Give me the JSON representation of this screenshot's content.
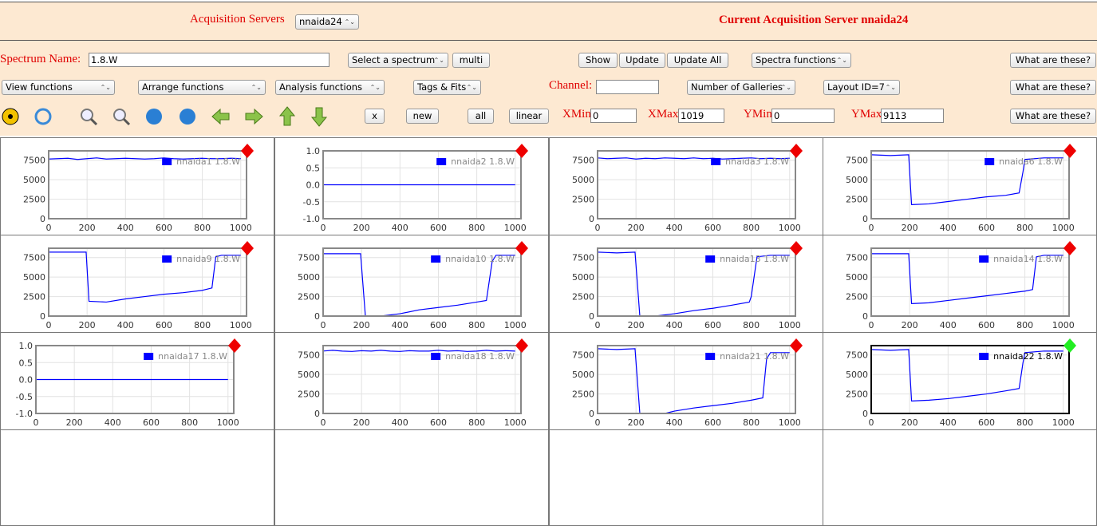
{
  "header": {
    "servers_label": "Acquisition Servers",
    "server": "nnaida24",
    "current": "Current Acquisition Server nnaida24"
  },
  "controls": {
    "spectrum_name_label": "Spectrum Name:",
    "spectrum_name": "1.8.W",
    "select_spectrum": "Select a spectrum",
    "multi": "multi",
    "show": "Show",
    "update": "Update",
    "update_all": "Update All",
    "spectra_functions": "Spectra functions",
    "help": [
      "What are these?",
      "What are these?",
      "What are these?"
    ],
    "view_functions": "View functions",
    "arrange_functions": "Arrange functions",
    "analysis_functions": "Analysis functions",
    "tags_fits": "Tags & Fits",
    "channel_label": "Channel:",
    "galleries": "Number of Galleries",
    "layout": "Layout ID=7",
    "x": "x",
    "new": "new",
    "all": "all",
    "linear": "linear",
    "xmin_label": "XMin",
    "xmin": "0",
    "xmax_label": "XMax",
    "xmax": "1019",
    "ymin_label": "YMin",
    "ymin": "0",
    "ymax_label": "YMax",
    "ymax": "9113"
  },
  "chart_data": [
    {
      "type": "line",
      "x": [
        0,
        50,
        100,
        150,
        200,
        250,
        300,
        350,
        400,
        450,
        500,
        550,
        600,
        650,
        700,
        750,
        800,
        850,
        900,
        950,
        1000
      ],
      "series": [
        {
          "name": "nnaida1 1.8.W",
          "color": "#0000ff",
          "values": [
            7650,
            7700,
            7750,
            7600,
            7700,
            7800,
            7650,
            7700,
            7750,
            7700,
            7650,
            7700,
            7800,
            7700,
            7650,
            7700,
            7750,
            7700,
            7700,
            7750,
            7700
          ]
        }
      ],
      "xlim": [
        0,
        1030
      ],
      "ylim": [
        0,
        8700
      ],
      "xticks": [
        0,
        200,
        400,
        600,
        800,
        1000
      ],
      "yticks": [
        0,
        2500,
        5000,
        7500
      ],
      "grid": true
    },
    {
      "type": "line",
      "x": [
        0,
        1000
      ],
      "series": [
        {
          "name": "nnaida2 1.8.W",
          "color": "#0000ff",
          "values": [
            0,
            0
          ]
        }
      ],
      "xlim": [
        0,
        1030
      ],
      "ylim": [
        -1,
        1
      ],
      "xticks": [
        0,
        200,
        400,
        600,
        800,
        1000
      ],
      "yticks": [
        {
          "value": -1,
          "label": "-1.0"
        },
        {
          "value": -0.5,
          "label": "-0.5"
        },
        {
          "value": 0,
          "label": "0.0"
        },
        {
          "value": 0.5,
          "label": "0.5"
        },
        {
          "value": 1,
          "label": "1.0"
        }
      ],
      "grid": true
    },
    {
      "type": "line",
      "x": [
        0,
        50,
        100,
        150,
        200,
        250,
        300,
        350,
        400,
        450,
        500,
        550,
        600,
        650,
        700,
        750,
        800,
        850,
        900,
        950,
        1000
      ],
      "series": [
        {
          "name": "nnaida3 1.8.W",
          "color": "#0000ff",
          "values": [
            7800,
            7700,
            7750,
            7800,
            7650,
            7750,
            7700,
            7800,
            7750,
            7700,
            7800,
            7700,
            7750,
            7650,
            7700,
            7750,
            7800,
            7700,
            7750,
            7700,
            7750
          ]
        }
      ],
      "xlim": [
        0,
        1030
      ],
      "ylim": [
        0,
        8700
      ],
      "xticks": [
        0,
        200,
        400,
        600,
        800,
        1000
      ],
      "yticks": [
        0,
        2500,
        5000,
        7500
      ],
      "grid": true
    },
    {
      "type": "line",
      "x": [
        0,
        100,
        195,
        210,
        300,
        400,
        500,
        600,
        700,
        770,
        790,
        800,
        900,
        1000
      ],
      "series": [
        {
          "name": "nnaida6 1.8.W",
          "color": "#0000ff",
          "values": [
            8200,
            8100,
            8200,
            1800,
            1900,
            2200,
            2500,
            2800,
            3000,
            3300,
            6000,
            7600,
            7800,
            7800
          ]
        }
      ],
      "xlim": [
        0,
        1030
      ],
      "ylim": [
        0,
        8700
      ],
      "xticks": [
        0,
        200,
        400,
        600,
        800,
        1000
      ],
      "yticks": [
        0,
        2500,
        5000,
        7500
      ],
      "grid": true
    },
    {
      "type": "line",
      "x": [
        0,
        100,
        195,
        210,
        300,
        400,
        500,
        600,
        700,
        800,
        850,
        870,
        900,
        1000
      ],
      "series": [
        {
          "name": "nnaida9 1.8.W",
          "color": "#0000ff",
          "values": [
            8200,
            8200,
            8200,
            1900,
            1800,
            2200,
            2500,
            2800,
            3000,
            3300,
            3600,
            7600,
            7800,
            7800
          ]
        }
      ],
      "xlim": [
        0,
        1030
      ],
      "ylim": [
        0,
        8700
      ],
      "xticks": [
        0,
        200,
        400,
        600,
        800,
        1000
      ],
      "yticks": [
        0,
        2500,
        5000,
        7500
      ],
      "grid": true
    },
    {
      "type": "line",
      "x": [
        0,
        100,
        195,
        220,
        300,
        400,
        500,
        600,
        700,
        800,
        850,
        880,
        900,
        1000
      ],
      "series": [
        {
          "name": "nnaida10 1.8.W",
          "color": "#0000ff",
          "values": [
            8000,
            8000,
            8000,
            0,
            0,
            300,
            800,
            1100,
            1400,
            1800,
            2000,
            7000,
            7800,
            7800
          ]
        }
      ],
      "xlim": [
        0,
        1030
      ],
      "ylim": [
        0,
        8700
      ],
      "xticks": [
        0,
        200,
        400,
        600,
        800,
        1000
      ],
      "yticks": [
        0,
        2500,
        5000,
        7500
      ],
      "grid": true
    },
    {
      "type": "line",
      "x": [
        0,
        100,
        195,
        220,
        300,
        400,
        500,
        600,
        700,
        790,
        800,
        830,
        900,
        1000
      ],
      "series": [
        {
          "name": "nnaida13 1.8.W",
          "color": "#0000ff",
          "values": [
            8200,
            8100,
            8200,
            0,
            0,
            300,
            700,
            1000,
            1400,
            1800,
            2500,
            7600,
            7800,
            7800
          ]
        }
      ],
      "xlim": [
        0,
        1030
      ],
      "ylim": [
        0,
        8700
      ],
      "xticks": [
        0,
        200,
        400,
        600,
        800,
        1000
      ],
      "yticks": [
        0,
        2500,
        5000,
        7500
      ],
      "grid": true
    },
    {
      "type": "line",
      "x": [
        0,
        100,
        195,
        210,
        300,
        400,
        500,
        600,
        700,
        800,
        840,
        860,
        900,
        1000
      ],
      "series": [
        {
          "name": "nnaida14 1.8.W",
          "color": "#0000ff",
          "values": [
            8000,
            8000,
            8000,
            1600,
            1700,
            2000,
            2300,
            2600,
            2900,
            3200,
            3400,
            7600,
            7800,
            7800
          ]
        }
      ],
      "xlim": [
        0,
        1030
      ],
      "ylim": [
        0,
        8700
      ],
      "xticks": [
        0,
        200,
        400,
        600,
        800,
        1000
      ],
      "yticks": [
        0,
        2500,
        5000,
        7500
      ],
      "grid": true
    },
    {
      "type": "line",
      "x": [
        0,
        1000
      ],
      "series": [
        {
          "name": "nnaida17 1.8.W",
          "color": "#0000ff",
          "values": [
            0,
            0
          ]
        }
      ],
      "xlim": [
        0,
        1030
      ],
      "ylim": [
        -1,
        1
      ],
      "xticks": [
        0,
        200,
        400,
        600,
        800,
        1000
      ],
      "yticks": [
        {
          "value": -1,
          "label": "-1.0"
        },
        {
          "value": -0.5,
          "label": "-0.5"
        },
        {
          "value": 0,
          "label": "0.0"
        },
        {
          "value": 0.5,
          "label": "0.5"
        },
        {
          "value": 1,
          "label": "1.0"
        }
      ],
      "grid": true
    },
    {
      "type": "line",
      "x": [
        0,
        50,
        100,
        150,
        200,
        250,
        300,
        350,
        400,
        450,
        500,
        550,
        600,
        650,
        700,
        750,
        800,
        850,
        900,
        950,
        1000
      ],
      "series": [
        {
          "name": "nnaida18 1.8.W",
          "color": "#0000ff",
          "values": [
            8000,
            8100,
            8000,
            7950,
            8050,
            8000,
            8100,
            8000,
            7950,
            8050,
            8000,
            8000,
            8100,
            8000,
            8050,
            7950,
            8000,
            8100,
            8000,
            8050,
            8000
          ]
        }
      ],
      "xlim": [
        0,
        1030
      ],
      "ylim": [
        0,
        8700
      ],
      "xticks": [
        0,
        200,
        400,
        600,
        800,
        1000
      ],
      "yticks": [
        0,
        2500,
        5000,
        7500
      ],
      "grid": true
    },
    {
      "type": "line",
      "x": [
        0,
        100,
        195,
        220,
        300,
        350,
        400,
        500,
        600,
        700,
        800,
        860,
        880,
        900,
        1000
      ],
      "series": [
        {
          "name": "nnaida21 1.8.W",
          "color": "#0000ff",
          "values": [
            8300,
            8200,
            8300,
            0,
            0,
            0,
            300,
            700,
            1000,
            1300,
            1700,
            2000,
            7000,
            7800,
            7800
          ]
        }
      ],
      "xlim": [
        0,
        1030
      ],
      "ylim": [
        0,
        8700
      ],
      "xticks": [
        0,
        200,
        400,
        600,
        800,
        1000
      ],
      "yticks": [
        0,
        2500,
        5000,
        7500
      ],
      "grid": true
    },
    {
      "type": "line",
      "x": [
        0,
        100,
        195,
        210,
        300,
        400,
        500,
        600,
        700,
        770,
        790,
        800,
        900,
        1000
      ],
      "series": [
        {
          "name": "nnaida22 1.8.W",
          "color": "#0000ff",
          "values": [
            8200,
            8100,
            8200,
            1600,
            1700,
            1900,
            2200,
            2500,
            2900,
            3200,
            6500,
            7800,
            8000,
            8000
          ]
        }
      ],
      "xlim": [
        0,
        1030
      ],
      "ylim": [
        0,
        8700
      ],
      "xticks": [
        0,
        200,
        400,
        600,
        800,
        1000
      ],
      "yticks": [
        0,
        2500,
        5000,
        7500
      ],
      "grid": true
    }
  ]
}
